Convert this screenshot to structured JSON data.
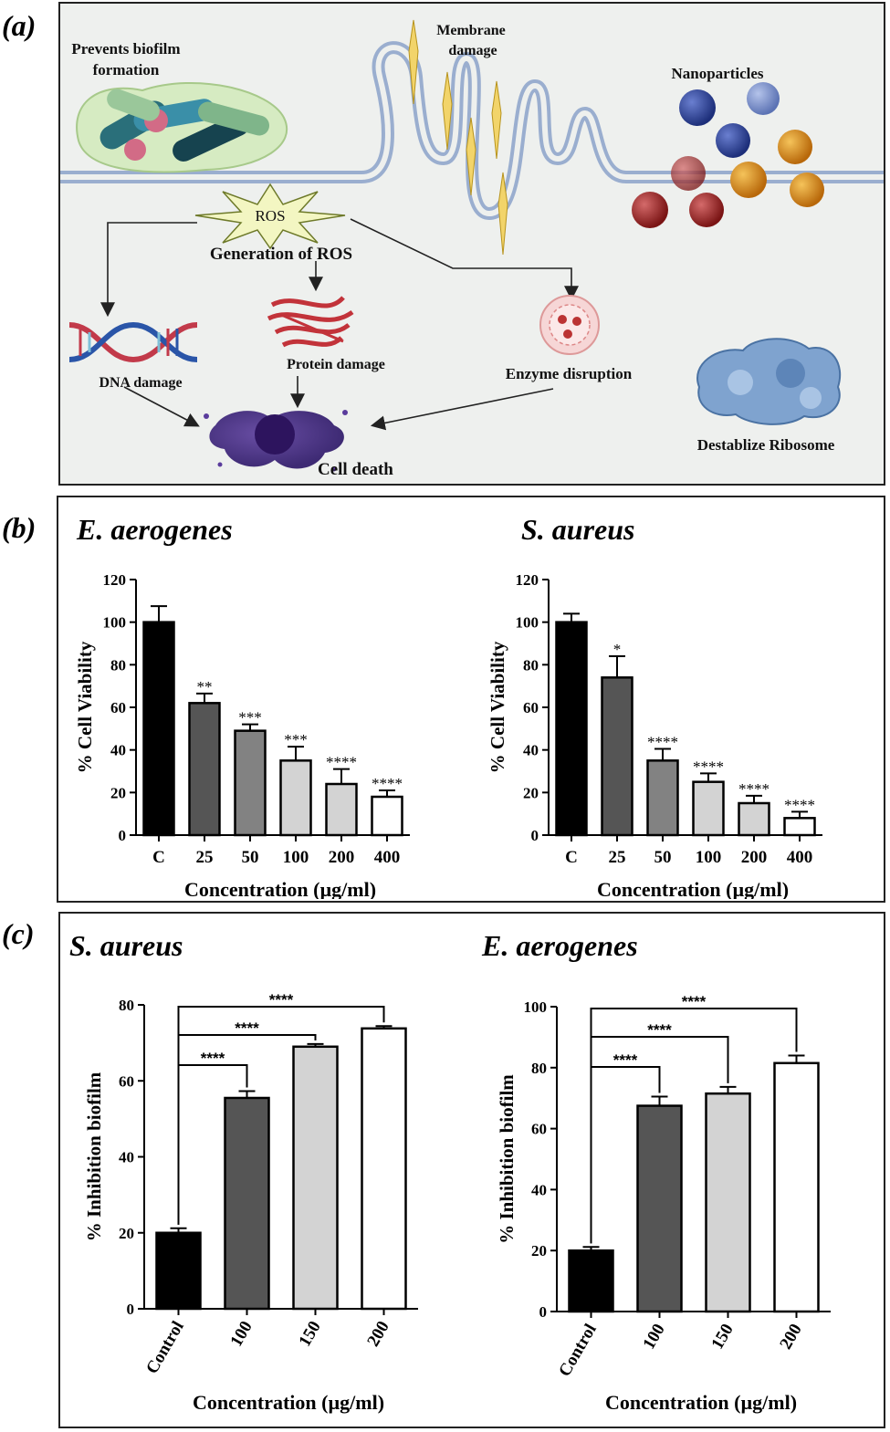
{
  "panel_labels": {
    "a": "(a)",
    "b": "(b)",
    "c": "(c)"
  },
  "diagram": {
    "labels": {
      "biofilm": [
        "Prevents biofilm",
        "formation"
      ],
      "membrane": [
        "Membrane",
        "damage"
      ],
      "nanoparticles": "Nanoparticles",
      "ros": "ROS",
      "generation": "Generation of ROS",
      "dna": "DNA damage",
      "protein": "Protein damage",
      "enzyme": "Enzyme disruption",
      "ribosome": "Destablize Ribosome",
      "cell_death": "Cell death"
    },
    "icons": [
      "biofilm-icon",
      "membrane-icon",
      "nanoparticle-icon",
      "ros-burst-icon",
      "dna-icon",
      "protein-icon",
      "enzyme-icon",
      "ribosome-icon",
      "dead-cell-icon"
    ]
  },
  "chart_data": [
    {
      "id": "b-left",
      "type": "bar",
      "title": "E. aerogenes",
      "xlabel": "Concentration (µg/ml)",
      "ylabel": "% Cell Viability",
      "categories": [
        "C",
        "25",
        "50",
        "100",
        "200",
        "400"
      ],
      "values": [
        100,
        62,
        49,
        35,
        24,
        18
      ],
      "errors": [
        7.5,
        4.5,
        3,
        6.5,
        7,
        3
      ],
      "significance": [
        "",
        "**",
        "***",
        "***",
        "****",
        "****"
      ],
      "ylim": [
        0,
        120
      ],
      "yticks": [
        0,
        20,
        40,
        60,
        80,
        100,
        120
      ],
      "colors": [
        "#000000",
        "#555555",
        "#828282",
        "#d3d3d3",
        "#d3d3d3",
        "#ffffff"
      ],
      "grid": false
    },
    {
      "id": "b-right",
      "type": "bar",
      "title": "S. aureus",
      "xlabel": "Concentration (µg/ml)",
      "ylabel": "% Cell Viability",
      "categories": [
        "C",
        "25",
        "50",
        "100",
        "200",
        "400"
      ],
      "values": [
        100,
        74,
        35,
        25,
        15,
        8
      ],
      "errors": [
        4,
        10,
        5.5,
        4,
        3.5,
        3
      ],
      "significance": [
        "",
        "*",
        "****",
        "****",
        "****",
        "****"
      ],
      "ylim": [
        0,
        120
      ],
      "yticks": [
        0,
        20,
        40,
        60,
        80,
        100,
        120
      ],
      "colors": [
        "#000000",
        "#555555",
        "#828282",
        "#d3d3d3",
        "#d3d3d3",
        "#ffffff"
      ],
      "grid": false
    },
    {
      "id": "c-left",
      "type": "bar",
      "title": "S. aureus",
      "xlabel": "Concentration (µg/ml)",
      "ylabel": "% Inhibition biofilm",
      "categories": [
        "Control",
        "100",
        "150",
        "200"
      ],
      "values": [
        20,
        55.5,
        69,
        73.8
      ],
      "errors": [
        1.2,
        1.8,
        0.7,
        0.6
      ],
      "comparisons": [
        {
          "from": "Control",
          "to": "100",
          "label": "****"
        },
        {
          "from": "Control",
          "to": "150",
          "label": "****"
        },
        {
          "from": "Control",
          "to": "200",
          "label": "****"
        }
      ],
      "ylim": [
        0,
        80
      ],
      "yticks": [
        0,
        20,
        40,
        60,
        80
      ],
      "colors": [
        "#000000",
        "#555555",
        "#d3d3d3",
        "#ffffff"
      ],
      "grid": false
    },
    {
      "id": "c-right",
      "type": "bar",
      "title": "E. aerogenes",
      "xlabel": "Concentration (µg/ml)",
      "ylabel": "% Inhibition biofilm",
      "categories": [
        "Control",
        "100",
        "150",
        "200"
      ],
      "values": [
        20,
        67.5,
        71.5,
        81.5
      ],
      "errors": [
        1.2,
        3,
        2.2,
        2.5
      ],
      "comparisons": [
        {
          "from": "Control",
          "to": "100",
          "label": "****"
        },
        {
          "from": "Control",
          "to": "150",
          "label": "****"
        },
        {
          "from": "Control",
          "to": "200",
          "label": "****"
        }
      ],
      "ylim": [
        0,
        100
      ],
      "yticks": [
        0,
        20,
        40,
        60,
        80,
        100
      ],
      "colors": [
        "#000000",
        "#555555",
        "#d3d3d3",
        "#ffffff"
      ],
      "grid": false
    }
  ]
}
